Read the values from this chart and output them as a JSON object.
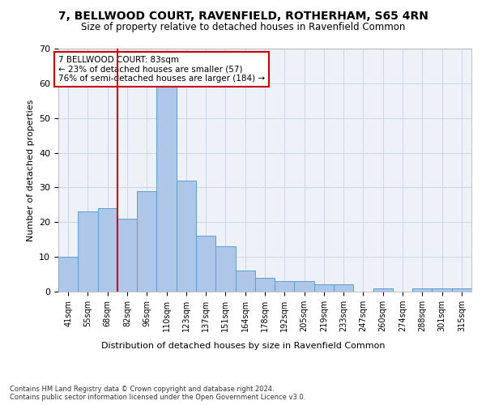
{
  "title": "7, BELLWOOD COURT, RAVENFIELD, ROTHERHAM, S65 4RN",
  "subtitle": "Size of property relative to detached houses in Ravenfield Common",
  "xlabel": "Distribution of detached houses by size in Ravenfield Common",
  "ylabel": "Number of detached properties",
  "categories": [
    "41sqm",
    "55sqm",
    "68sqm",
    "82sqm",
    "96sqm",
    "110sqm",
    "123sqm",
    "137sqm",
    "151sqm",
    "164sqm",
    "178sqm",
    "192sqm",
    "205sqm",
    "219sqm",
    "233sqm",
    "247sqm",
    "260sqm",
    "274sqm",
    "288sqm",
    "301sqm",
    "315sqm"
  ],
  "values": [
    10,
    23,
    24,
    21,
    29,
    59,
    32,
    16,
    13,
    6,
    4,
    3,
    3,
    2,
    2,
    0,
    1,
    0,
    1,
    1,
    1
  ],
  "bar_color": "#aec6e8",
  "bar_edge_color": "#5a9fd4",
  "grid_color": "#d0d8e8",
  "background_color": "#eef2f8",
  "vline_x_index": 2.5,
  "vline_color": "#cc0000",
  "annotation_text": "7 BELLWOOD COURT: 83sqm\n← 23% of detached houses are smaller (57)\n76% of semi-detached houses are larger (184) →",
  "annotation_box_color": "#ffffff",
  "annotation_box_edge": "#cc0000",
  "footer": "Contains HM Land Registry data © Crown copyright and database right 2024.\nContains public sector information licensed under the Open Government Licence v3.0.",
  "ylim": [
    0,
    70
  ],
  "yticks": [
    0,
    10,
    20,
    30,
    40,
    50,
    60,
    70
  ],
  "title_fontsize": 10,
  "subtitle_fontsize": 8.5
}
